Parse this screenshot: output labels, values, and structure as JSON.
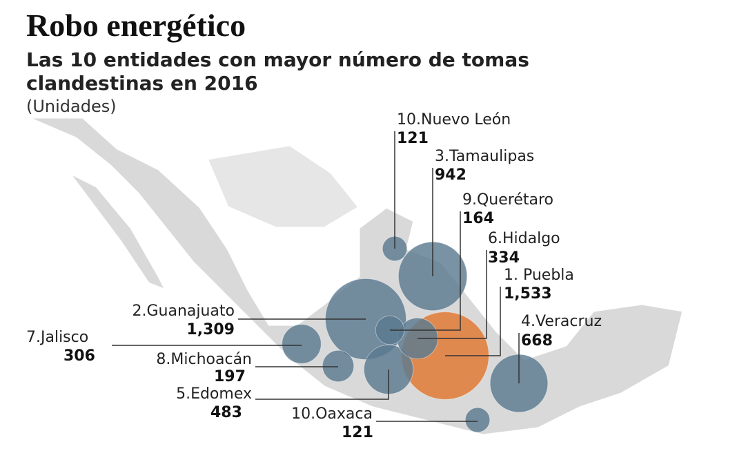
{
  "chart_data": {
    "type": "bubble",
    "title": "Robo energético",
    "subtitle": [
      "Las 10 entidades con mayor número de tomas",
      "clandestinas en 2016"
    ],
    "unit": "(Unidades)",
    "categories": [
      "10.Nuevo León",
      "3.Tamaulipas",
      "9.Querétaro",
      "6.Hidalgo",
      "1. Puebla",
      "4.Veracruz",
      "2.Guanajuato",
      "7.Jalisco",
      "8.Michoacán",
      "5.Edomex",
      "10.Oaxaca"
    ],
    "values": [
      121,
      942,
      164,
      334,
      1533,
      668,
      1309,
      306,
      197,
      483,
      121
    ],
    "value_labels": [
      "121",
      "942",
      "164",
      "334",
      "1,533",
      "668",
      "1,309",
      "306",
      "197",
      "483",
      "121"
    ],
    "colors": [
      "#5c7a90",
      "#5c7a90",
      "#5c7a90",
      "#5c7a90",
      "#e0782f",
      "#5c7a90",
      "#5c7a90",
      "#5c7a90",
      "#5c7a90",
      "#5c7a90",
      "#5c7a90"
    ]
  }
}
